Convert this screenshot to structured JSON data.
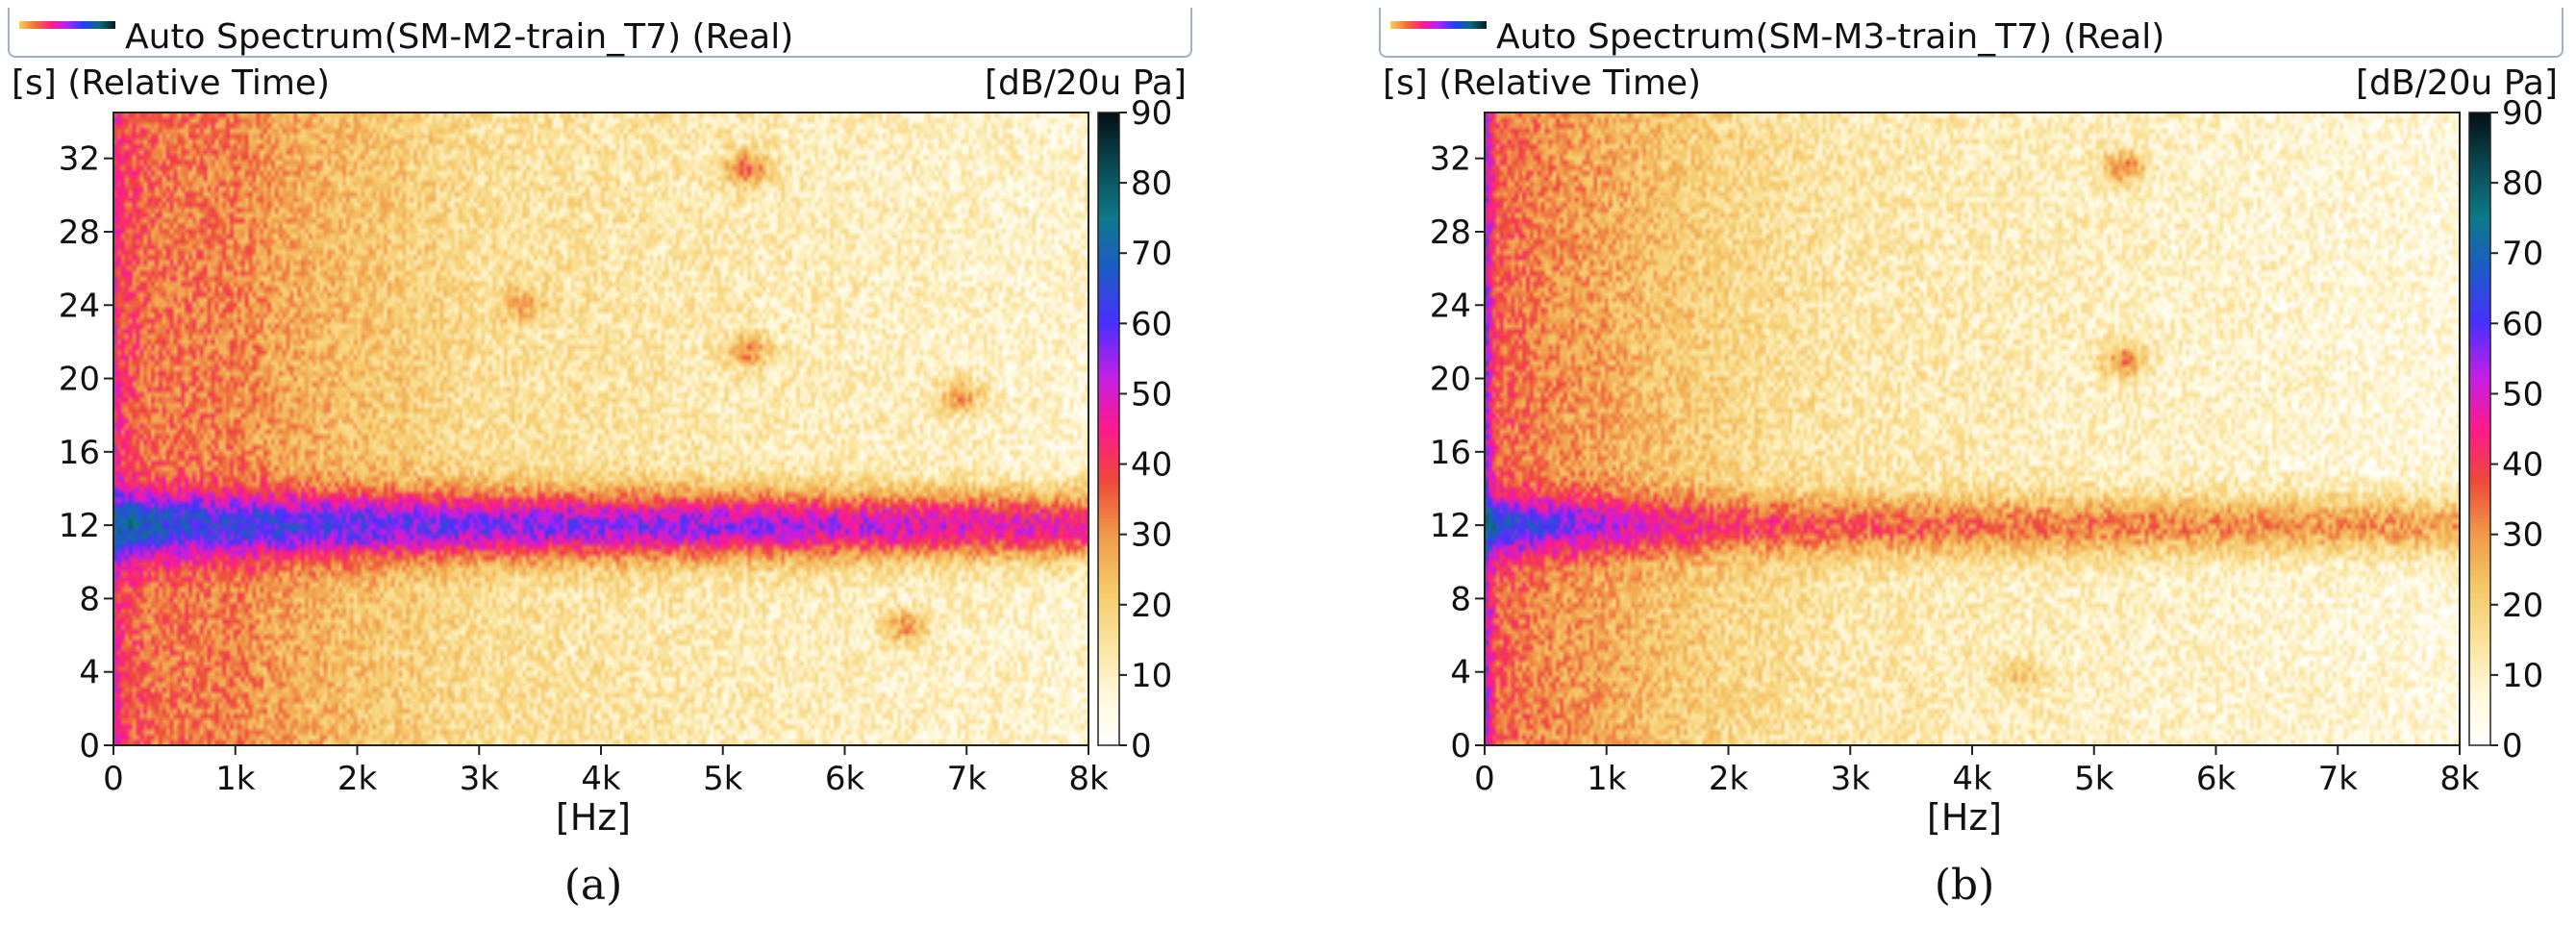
{
  "chart_data": [
    {
      "type": "heatmap",
      "title": "Auto Spectrum(SM-M2-train_T7) (Real)",
      "caption": "(a)",
      "xlabel": "[Hz]",
      "ylabel": "[s] (Relative Time)",
      "colorbar_label": "[dB/20u Pa]",
      "x_ticks": [
        "0",
        "1k",
        "2k",
        "3k",
        "4k",
        "5k",
        "6k",
        "7k",
        "8k"
      ],
      "y_ticks": [
        "0",
        "4",
        "8",
        "12",
        "16",
        "20",
        "24",
        "28",
        "32"
      ],
      "colorbar_ticks": [
        "0",
        "10",
        "20",
        "30",
        "40",
        "50",
        "60",
        "70",
        "80",
        "90"
      ],
      "xlim": [
        0,
        8000
      ],
      "ylim": [
        0,
        34.5
      ],
      "zlim": [
        0,
        90
      ],
      "colormap": [
        "#ffffff",
        "#fff8d8",
        "#fae29a",
        "#f5c868",
        "#f09a4a",
        "#ee4a3a",
        "#ff1a8c",
        "#c220e6",
        "#4a30ff",
        "#1f5ac8",
        "#0e7a8a",
        "#0a4a52",
        "#050f14"
      ],
      "background_level_db": [
        [
          0,
          46
        ],
        [
          60,
          40
        ],
        [
          300,
          34
        ],
        [
          1000,
          32
        ],
        [
          1400,
          27
        ],
        [
          2000,
          23
        ],
        [
          3000,
          16
        ],
        [
          5000,
          12
        ],
        [
          8000,
          8
        ]
      ],
      "band": {
        "center_s": 12,
        "halfwidth_s": 1.8,
        "peak_level_db": [
          [
            0,
            75
          ],
          [
            500,
            66
          ],
          [
            1500,
            62
          ],
          [
            3000,
            58
          ],
          [
            5000,
            55
          ],
          [
            8000,
            46
          ]
        ]
      },
      "features": [
        {
          "x": 6500,
          "y": 6.5,
          "level_db": 30
        },
        {
          "x": 5200,
          "y": 31.5,
          "level_db": 36
        },
        {
          "x": 5200,
          "y": 21.5,
          "level_db": 32
        },
        {
          "x": 6950,
          "y": 19.0,
          "level_db": 30
        },
        {
          "x": 3350,
          "y": 24.0,
          "level_db": 28
        }
      ]
    },
    {
      "type": "heatmap",
      "title": "Auto Spectrum(SM-M3-train_T7) (Real)",
      "caption": "(b)",
      "xlabel": "[Hz]",
      "ylabel": "[s] (Relative Time)",
      "colorbar_label": "[dB/20u Pa]",
      "x_ticks": [
        "0",
        "1k",
        "2k",
        "3k",
        "4k",
        "5k",
        "6k",
        "7k",
        "8k"
      ],
      "y_ticks": [
        "0",
        "4",
        "8",
        "12",
        "16",
        "20",
        "24",
        "28",
        "32"
      ],
      "colorbar_ticks": [
        "0",
        "10",
        "20",
        "30",
        "40",
        "50",
        "60",
        "70",
        "80",
        "90"
      ],
      "xlim": [
        0,
        8000
      ],
      "ylim": [
        0,
        34.5
      ],
      "zlim": [
        0,
        90
      ],
      "colormap": [
        "#ffffff",
        "#fff8d8",
        "#fae29a",
        "#f5c868",
        "#f09a4a",
        "#ee4a3a",
        "#ff1a8c",
        "#c220e6",
        "#4a30ff",
        "#1f5ac8",
        "#0e7a8a",
        "#0a4a52",
        "#050f14"
      ],
      "background_level_db": [
        [
          0,
          56
        ],
        [
          30,
          50
        ],
        [
          100,
          36
        ],
        [
          600,
          30
        ],
        [
          1000,
          27
        ],
        [
          2000,
          18
        ],
        [
          3000,
          13
        ],
        [
          5000,
          10
        ],
        [
          8000,
          6
        ]
      ],
      "band": {
        "center_s": 12,
        "halfwidth_s": 1.6,
        "peak_level_db": [
          [
            0,
            74
          ],
          [
            300,
            64
          ],
          [
            1000,
            52
          ],
          [
            2000,
            40
          ],
          [
            4000,
            34
          ],
          [
            8000,
            28
          ]
        ]
      },
      "features": [
        {
          "x": 5250,
          "y": 31.5,
          "level_db": 34
        },
        {
          "x": 5250,
          "y": 21.0,
          "level_db": 32
        },
        {
          "x": 4400,
          "y": 3.8,
          "level_db": 22
        }
      ]
    }
  ]
}
